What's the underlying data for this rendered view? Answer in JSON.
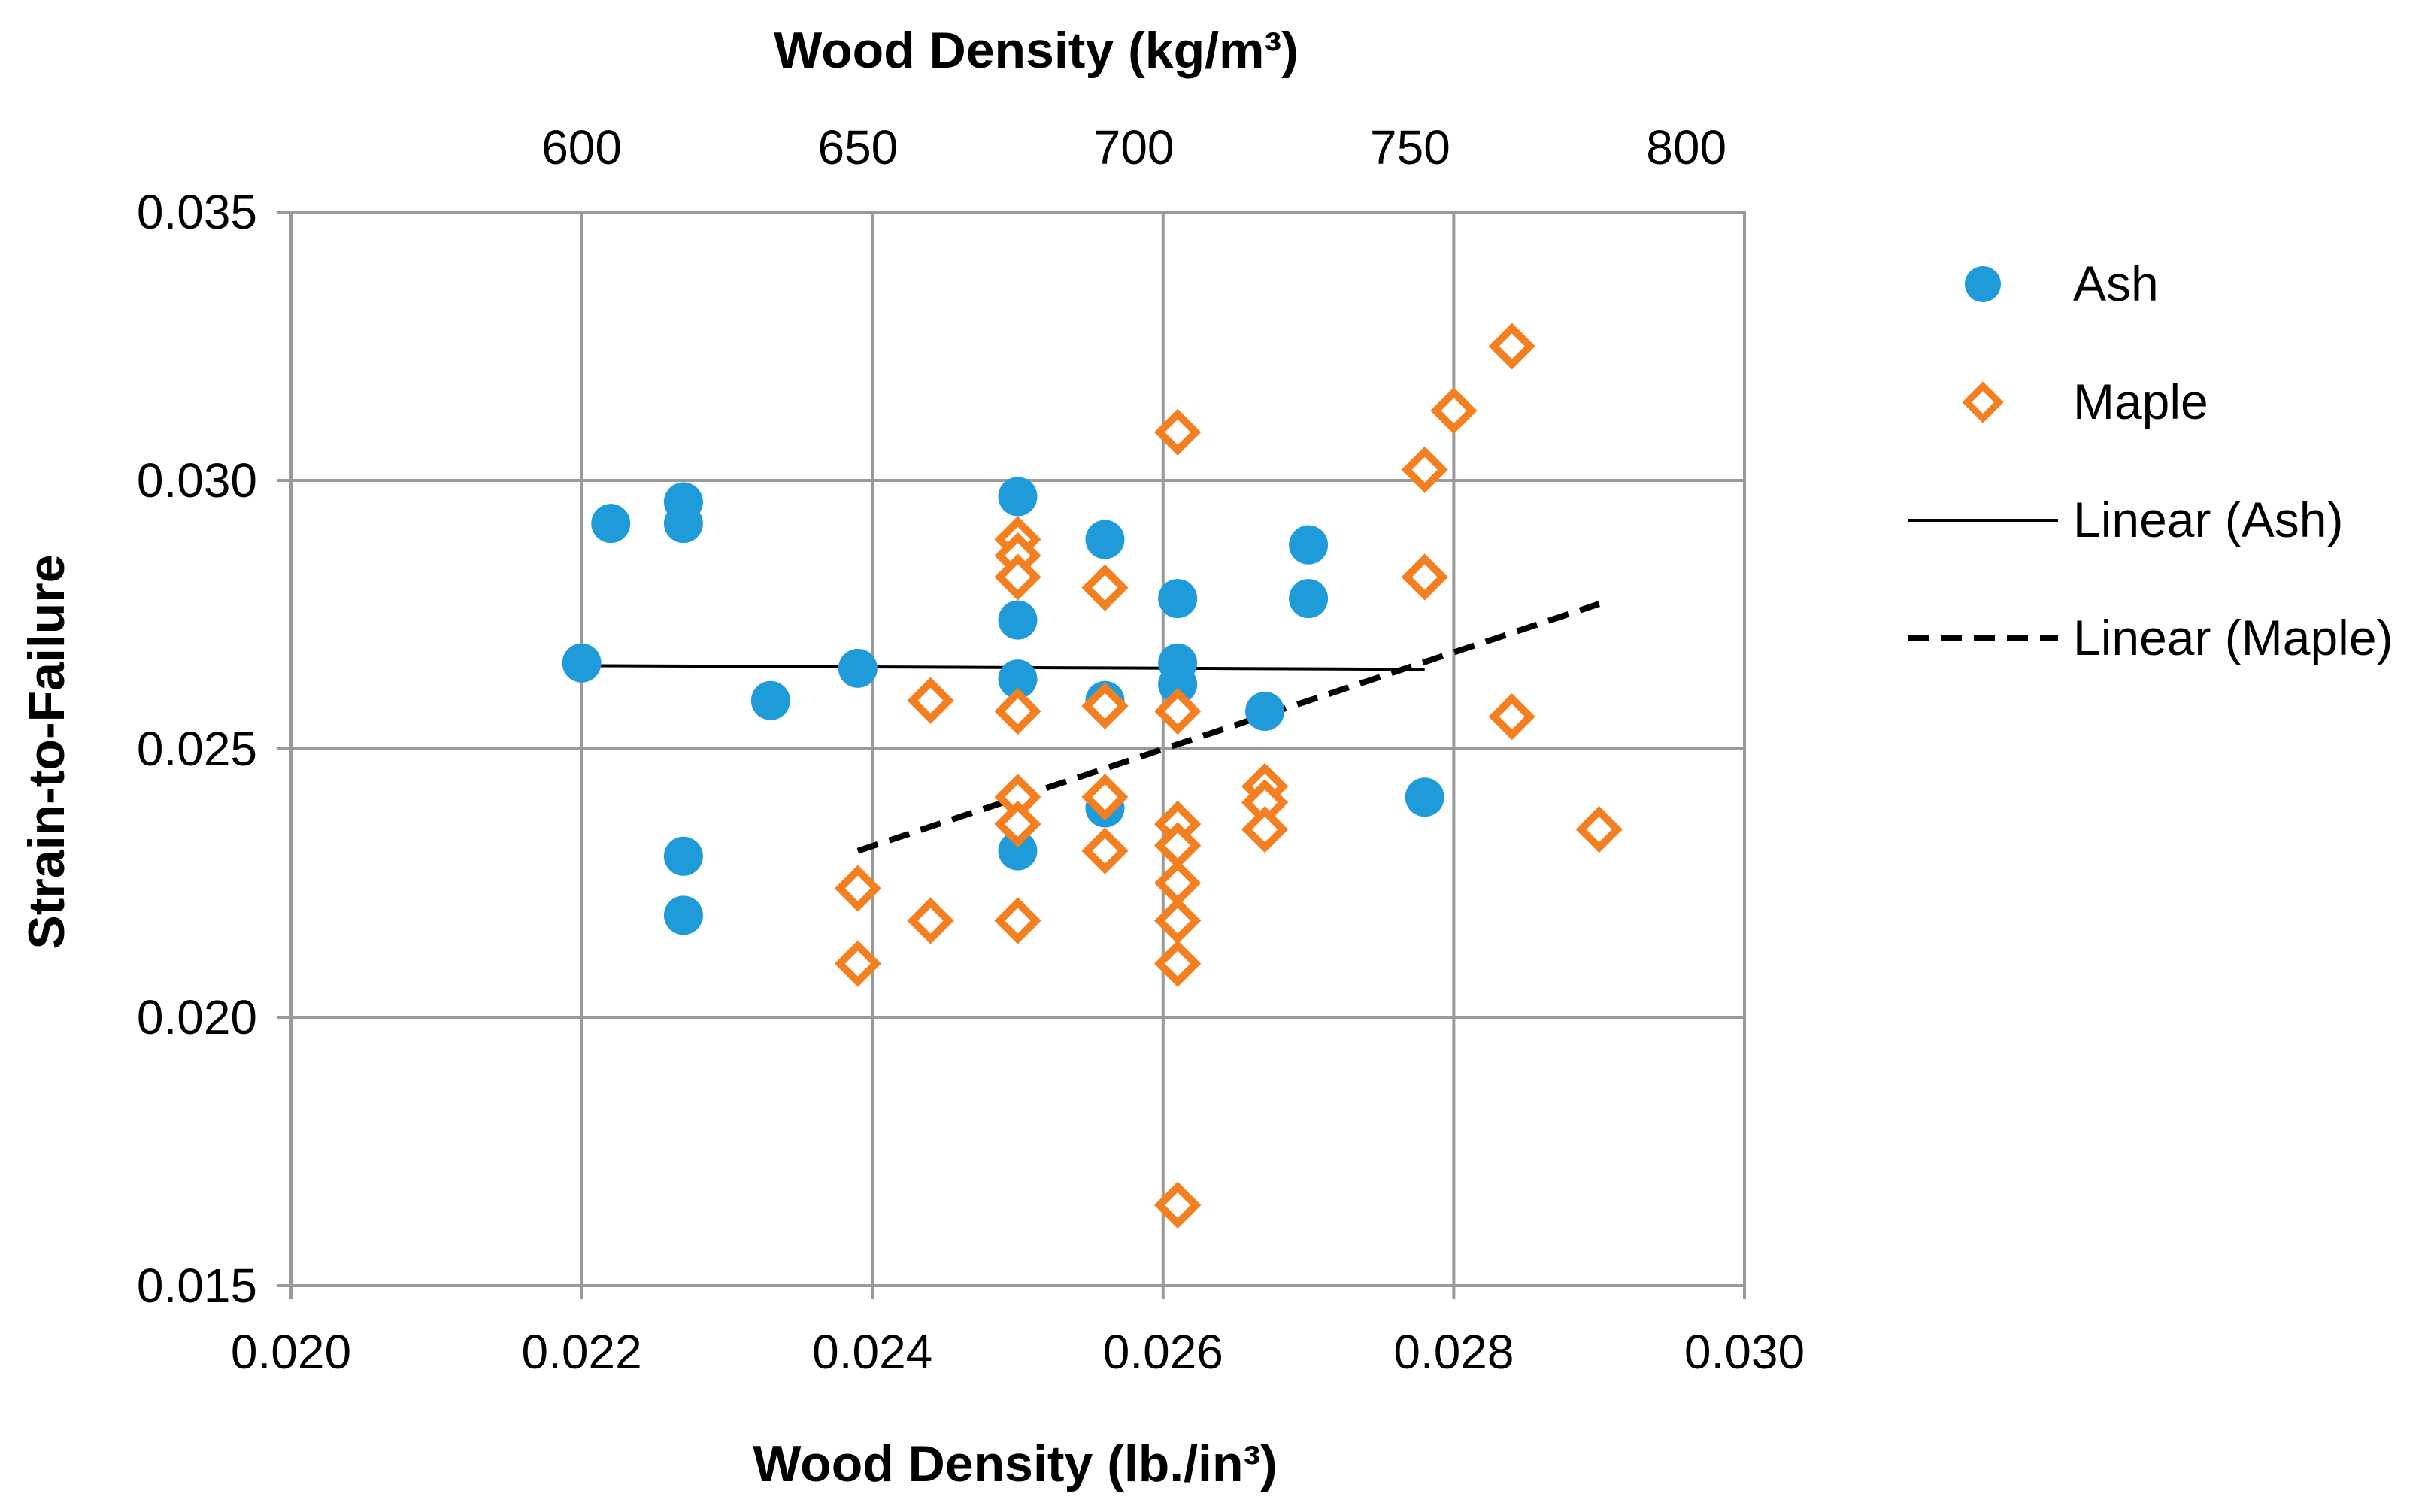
{
  "chart_data": {
    "type": "scatter",
    "title": "",
    "xlabel": "Wood Density (lb./in³)",
    "ylabel": "Strain-to-Failure",
    "secondary_xlabel": "Wood Density (kg/m³)",
    "xlim": [
      0.02,
      0.03
    ],
    "ylim": [
      0.015,
      0.035
    ],
    "grid": true,
    "legend_position": "right",
    "x_ticks": [
      "0.020",
      "0.022",
      "0.024",
      "0.026",
      "0.028",
      "0.030"
    ],
    "y_ticks": [
      "0.015",
      "0.020",
      "0.025",
      "0.030",
      "0.035"
    ],
    "secondary_x_ticks": [
      {
        "label": "600",
        "x": 0.022
      },
      {
        "label": "650",
        "x": 0.0239
      },
      {
        "label": "700",
        "x": 0.0258
      },
      {
        "label": "750",
        "x": 0.0277
      },
      {
        "label": "800",
        "x": 0.0296
      }
    ],
    "series": [
      {
        "name": "Ash",
        "marker": "circle",
        "color": "#1f9bd9",
        "x": [
          0.022,
          0.0222,
          0.0227,
          0.0227,
          0.0227,
          0.0227,
          0.0233,
          0.0239,
          0.025,
          0.025,
          0.025,
          0.025,
          0.0256,
          0.0256,
          0.0256,
          0.0261,
          0.0261,
          0.0261,
          0.0267,
          0.027,
          0.027,
          0.0278
        ],
        "y": [
          0.0266,
          0.0292,
          0.0296,
          0.0292,
          0.023,
          0.0219,
          0.0259,
          0.0265,
          0.0297,
          0.0274,
          0.0263,
          0.0231,
          0.0289,
          0.0259,
          0.0239,
          0.0278,
          0.0266,
          0.0262,
          0.0257,
          0.0288,
          0.0278,
          0.0241
        ]
      },
      {
        "name": "Maple",
        "marker": "diamond",
        "color": "#f47f20",
        "x": [
          0.0239,
          0.0239,
          0.0244,
          0.0244,
          0.025,
          0.025,
          0.025,
          0.025,
          0.025,
          0.025,
          0.025,
          0.0256,
          0.0256,
          0.0256,
          0.0256,
          0.0261,
          0.0261,
          0.0261,
          0.0261,
          0.0261,
          0.0261,
          0.0261,
          0.0261,
          0.0261,
          0.0267,
          0.0267,
          0.0267,
          0.0278,
          0.0278,
          0.028,
          0.0284,
          0.0284,
          0.029
        ],
        "y": [
          0.0224,
          0.021,
          0.0259,
          0.0218,
          0.0289,
          0.0286,
          0.0282,
          0.0257,
          0.0241,
          0.0236,
          0.0218,
          0.028,
          0.0258,
          0.0241,
          0.0231,
          0.0309,
          0.0257,
          0.0236,
          0.0232,
          0.0225,
          0.0218,
          0.021,
          0.0165,
          0.0165,
          0.0243,
          0.024,
          0.0235,
          0.0302,
          0.0282,
          0.0313,
          0.0325,
          0.0256,
          0.0235
        ]
      }
    ],
    "trendlines": [
      {
        "name": "Linear (Ash)",
        "style": "solid",
        "color": "#000000",
        "x": [
          0.022,
          0.0278
        ],
        "y": [
          0.02655,
          0.02648
        ]
      },
      {
        "name": "Linear (Maple)",
        "style": "dashed",
        "color": "#000000",
        "x": [
          0.0239,
          0.029
        ],
        "y": [
          0.0231,
          0.0277
        ]
      }
    ]
  }
}
